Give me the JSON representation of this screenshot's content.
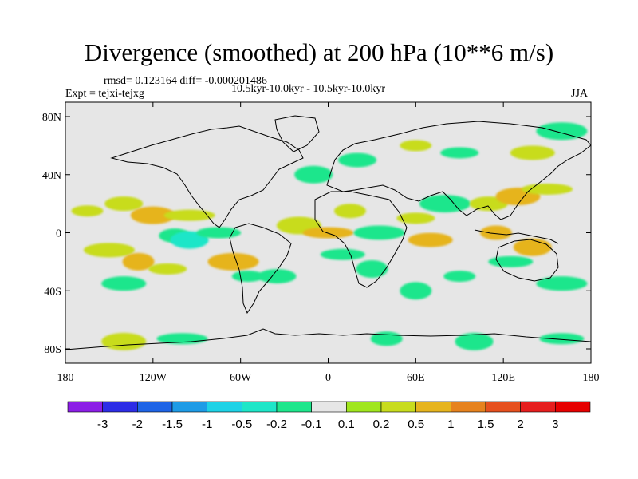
{
  "header": {
    "title": "Divergence (smoothed) at 200 hPa (10**6 m/s)",
    "stats": "rmsd= 0.123164 diff= -0.000201486",
    "experiment": "Expt = tejxi-tejxg",
    "period": "10.5kyr-10.0kyr - 10.5kyr-10.0kyr",
    "season": "JJA"
  },
  "map": {
    "lat_labels": [
      "80N",
      "40N",
      "0",
      "40S",
      "80S"
    ],
    "lat_values": [
      80,
      40,
      0,
      -40,
      -80
    ],
    "lon_labels": [
      "180",
      "120W",
      "60W",
      "0",
      "60E",
      "120E",
      "180"
    ],
    "lon_values": [
      -180,
      -120,
      -60,
      0,
      60,
      120,
      180
    ],
    "background_color": "#e6e6e6"
  },
  "colorbar": {
    "labels": [
      "-3",
      "-2",
      "-1.5",
      "-1",
      "-0.5",
      "-0.2",
      "-0.1",
      "0.1",
      "0.2",
      "0.5",
      "1",
      "1.5",
      "2",
      "3"
    ],
    "colors": [
      "#8c1ee6",
      "#2d2de6",
      "#1e64e6",
      "#1e9be6",
      "#1ed2e6",
      "#1ee6c8",
      "#1ee68c",
      "#e6e6e6",
      "#a0e61e",
      "#c8dc1e",
      "#e6b41e",
      "#e6821e",
      "#e6501e",
      "#e61e1e",
      "#e60000"
    ]
  },
  "fields": [
    {
      "lon": -165,
      "lat": 15,
      "v": 0.2
    },
    {
      "lon": -140,
      "lat": 20,
      "v": 0.2
    },
    {
      "lon": -120,
      "lat": 12,
      "v": 0.5
    },
    {
      "lon": -95,
      "lat": 12,
      "v": 0.2
    },
    {
      "lon": -105,
      "lat": -2,
      "v": -0.2
    },
    {
      "lon": -95,
      "lat": -5,
      "v": -0.5
    },
    {
      "lon": -75,
      "lat": 0,
      "v": -0.2
    },
    {
      "lon": -150,
      "lat": -12,
      "v": 0.2
    },
    {
      "lon": -130,
      "lat": -20,
      "v": 0.5
    },
    {
      "lon": -110,
      "lat": -25,
      "v": 0.2
    },
    {
      "lon": -140,
      "lat": -35,
      "v": -0.2
    },
    {
      "lon": -65,
      "lat": -20,
      "v": 0.5
    },
    {
      "lon": -55,
      "lat": -30,
      "v": -0.2
    },
    {
      "lon": -35,
      "lat": -30,
      "v": -0.2
    },
    {
      "lon": -20,
      "lat": 5,
      "v": 0.2
    },
    {
      "lon": 0,
      "lat": 0,
      "v": 0.5
    },
    {
      "lon": 15,
      "lat": 15,
      "v": 0.2
    },
    {
      "lon": -10,
      "lat": 40,
      "v": -0.2
    },
    {
      "lon": 10,
      "lat": -15,
      "v": -0.2
    },
    {
      "lon": 35,
      "lat": 0,
      "v": -0.2
    },
    {
      "lon": 30,
      "lat": -25,
      "v": -0.2
    },
    {
      "lon": 60,
      "lat": 10,
      "v": 0.2
    },
    {
      "lon": 70,
      "lat": -5,
      "v": 0.5
    },
    {
      "lon": 80,
      "lat": 20,
      "v": -0.2
    },
    {
      "lon": 90,
      "lat": -30,
      "v": -0.2
    },
    {
      "lon": 110,
      "lat": 20,
      "v": 0.2
    },
    {
      "lon": 130,
      "lat": 25,
      "v": 0.5
    },
    {
      "lon": 150,
      "lat": 30,
      "v": 0.2
    },
    {
      "lon": 115,
      "lat": 0,
      "v": 0.5
    },
    {
      "lon": 140,
      "lat": -10,
      "v": 0.5
    },
    {
      "lon": 125,
      "lat": -20,
      "v": -0.2
    },
    {
      "lon": 160,
      "lat": -35,
      "v": -0.2
    },
    {
      "lon": 60,
      "lat": -40,
      "v": -0.2
    },
    {
      "lon": 90,
      "lat": 55,
      "v": -0.2
    },
    {
      "lon": 140,
      "lat": 55,
      "v": 0.2
    },
    {
      "lon": 160,
      "lat": 70,
      "v": -0.2
    },
    {
      "lon": 60,
      "lat": 60,
      "v": 0.2
    },
    {
      "lon": 20,
      "lat": 50,
      "v": -0.2
    },
    {
      "lon": -140,
      "lat": -75,
      "v": 0.2
    },
    {
      "lon": -100,
      "lat": -73,
      "v": -0.2
    },
    {
      "lon": 40,
      "lat": -73,
      "v": -0.2
    },
    {
      "lon": 100,
      "lat": -75,
      "v": -0.2
    },
    {
      "lon": 160,
      "lat": -73,
      "v": -0.2
    }
  ]
}
